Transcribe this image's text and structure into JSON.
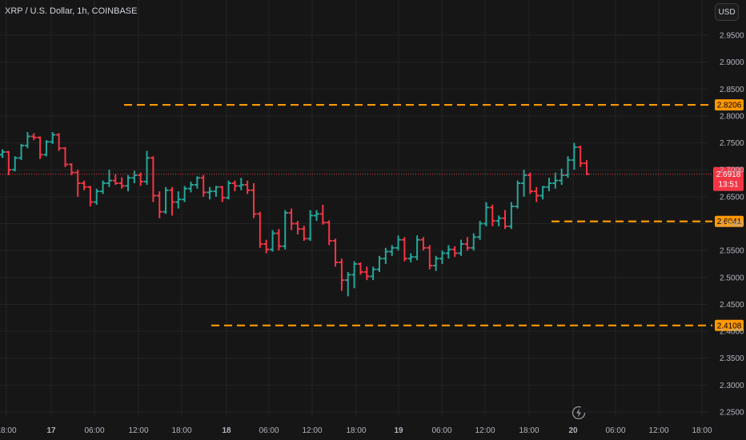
{
  "title": "XRP / U.S. Dollar, 1h, COINBASE",
  "currency_button": "USD",
  "countdown": "13:51",
  "colors": {
    "background": "#161616",
    "grid": "#242424",
    "up": "#26a69a",
    "down": "#f23645",
    "level": "#ff9800",
    "axis_text": "#b2b5be"
  },
  "icons": {
    "sync": "lightning-circle-icon"
  },
  "chart_data": {
    "type": "ohlc",
    "ylim": [
      2.23,
      2.99
    ],
    "y_ticks": [
      "2.2500",
      "2.3000",
      "2.3500",
      "2.4000",
      "2.4500",
      "2.5000",
      "2.5500",
      "2.6000",
      "2.6500",
      "2.7000",
      "2.7500",
      "2.8000",
      "2.8500",
      "2.9000",
      "2.9500"
    ],
    "x_ticks": [
      "18:00",
      "17",
      "06:00",
      "12:00",
      "18:00",
      "18",
      "06:00",
      "12:00",
      "18:00",
      "19",
      "06:00",
      "12:00",
      "18:00",
      "20",
      "06:00",
      "12:00",
      "18:00"
    ],
    "last_price": "2.6918",
    "levels": [
      "2.8206",
      "2.6041",
      "2.4108"
    ],
    "bars": [
      [
        2.728,
        2.738,
        2.722,
        2.733
      ],
      [
        2.733,
        2.735,
        2.69,
        2.7
      ],
      [
        2.7,
        2.725,
        2.697,
        2.722
      ],
      [
        2.722,
        2.748,
        2.718,
        2.745
      ],
      [
        2.745,
        2.77,
        2.74,
        2.762
      ],
      [
        2.762,
        2.768,
        2.755,
        2.76
      ],
      [
        2.76,
        2.762,
        2.72,
        2.728
      ],
      [
        2.728,
        2.755,
        2.725,
        2.752
      ],
      [
        2.752,
        2.77,
        2.748,
        2.765
      ],
      [
        2.765,
        2.768,
        2.735,
        2.74
      ],
      [
        2.74,
        2.742,
        2.705,
        2.71
      ],
      [
        2.71,
        2.712,
        2.69,
        2.695
      ],
      [
        2.695,
        2.7,
        2.65,
        2.675
      ],
      [
        2.675,
        2.68,
        2.662,
        2.668
      ],
      [
        2.668,
        2.67,
        2.632,
        2.64
      ],
      [
        2.64,
        2.665,
        2.635,
        2.66
      ],
      [
        2.66,
        2.68,
        2.655,
        2.675
      ],
      [
        2.675,
        2.7,
        2.668,
        2.68
      ],
      [
        2.68,
        2.692,
        2.672,
        2.675
      ],
      [
        2.675,
        2.686,
        2.665,
        2.67
      ],
      [
        2.67,
        2.69,
        2.66,
        2.685
      ],
      [
        2.685,
        2.698,
        2.675,
        2.69
      ],
      [
        2.69,
        2.695,
        2.67,
        2.678
      ],
      [
        2.678,
        2.735,
        2.672,
        2.722
      ],
      [
        2.722,
        2.725,
        2.64,
        2.652
      ],
      [
        2.652,
        2.66,
        2.61,
        2.622
      ],
      [
        2.622,
        2.668,
        2.618,
        2.662
      ],
      [
        2.662,
        2.668,
        2.615,
        2.64
      ],
      [
        2.64,
        2.66,
        2.628,
        2.645
      ],
      [
        2.645,
        2.67,
        2.64,
        2.665
      ],
      [
        2.665,
        2.678,
        2.658,
        2.672
      ],
      [
        2.672,
        2.688,
        2.665,
        2.685
      ],
      [
        2.685,
        2.69,
        2.65,
        2.658
      ],
      [
        2.658,
        2.668,
        2.645,
        2.66
      ],
      [
        2.66,
        2.67,
        2.65,
        2.668
      ],
      [
        2.668,
        2.67,
        2.64,
        2.648
      ],
      [
        2.648,
        2.68,
        2.645,
        2.675
      ],
      [
        2.675,
        2.68,
        2.66,
        2.67
      ],
      [
        2.67,
        2.685,
        2.662,
        2.672
      ],
      [
        2.672,
        2.68,
        2.655,
        2.662
      ],
      [
        2.662,
        2.675,
        2.61,
        2.618
      ],
      [
        2.618,
        2.622,
        2.555,
        2.562
      ],
      [
        2.562,
        2.57,
        2.545,
        2.552
      ],
      [
        2.552,
        2.588,
        2.548,
        2.582
      ],
      [
        2.582,
        2.59,
        2.55,
        2.558
      ],
      [
        2.558,
        2.625,
        2.552,
        2.62
      ],
      [
        2.62,
        2.628,
        2.588,
        2.6
      ],
      [
        2.6,
        2.605,
        2.58,
        2.59
      ],
      [
        2.59,
        2.596,
        2.568,
        2.572
      ],
      [
        2.572,
        2.625,
        2.568,
        2.615
      ],
      [
        2.615,
        2.625,
        2.605,
        2.618
      ],
      [
        2.618,
        2.635,
        2.598,
        2.602
      ],
      [
        2.602,
        2.606,
        2.56,
        2.568
      ],
      [
        2.568,
        2.572,
        2.52,
        2.528
      ],
      [
        2.528,
        2.535,
        2.475,
        2.495
      ],
      [
        2.495,
        2.51,
        2.465,
        2.505
      ],
      [
        2.505,
        2.53,
        2.48,
        2.525
      ],
      [
        2.525,
        2.528,
        2.505,
        2.51
      ],
      [
        2.51,
        2.52,
        2.495,
        2.502
      ],
      [
        2.502,
        2.52,
        2.495,
        2.515
      ],
      [
        2.515,
        2.54,
        2.51,
        2.535
      ],
      [
        2.535,
        2.555,
        2.525,
        2.548
      ],
      [
        2.548,
        2.56,
        2.54,
        2.555
      ],
      [
        2.555,
        2.578,
        2.55,
        2.57
      ],
      [
        2.57,
        2.575,
        2.53,
        2.535
      ],
      [
        2.535,
        2.545,
        2.528,
        2.538
      ],
      [
        2.538,
        2.578,
        2.532,
        2.57
      ],
      [
        2.57,
        2.575,
        2.55,
        2.555
      ],
      [
        2.555,
        2.56,
        2.515,
        2.522
      ],
      [
        2.522,
        2.54,
        2.512,
        2.535
      ],
      [
        2.535,
        2.55,
        2.525,
        2.545
      ],
      [
        2.545,
        2.56,
        2.535,
        2.552
      ],
      [
        2.552,
        2.558,
        2.538,
        2.545
      ],
      [
        2.545,
        2.57,
        2.54,
        2.562
      ],
      [
        2.562,
        2.575,
        2.55,
        2.555
      ],
      [
        2.555,
        2.582,
        2.55,
        2.575
      ],
      [
        2.575,
        2.605,
        2.57,
        2.6
      ],
      [
        2.6,
        2.64,
        2.595,
        2.63
      ],
      [
        2.63,
        2.635,
        2.595,
        2.605
      ],
      [
        2.605,
        2.615,
        2.595,
        2.61
      ],
      [
        2.61,
        2.625,
        2.59,
        2.595
      ],
      [
        2.595,
        2.64,
        2.59,
        2.632
      ],
      [
        2.632,
        2.68,
        2.628,
        2.675
      ],
      [
        2.675,
        2.7,
        2.65,
        2.69
      ],
      [
        2.69,
        2.695,
        2.655,
        2.66
      ],
      [
        2.66,
        2.668,
        2.64,
        2.652
      ],
      [
        2.652,
        2.67,
        2.645,
        2.668
      ],
      [
        2.668,
        2.685,
        2.66,
        2.675
      ],
      [
        2.675,
        2.695,
        2.665,
        2.68
      ],
      [
        2.68,
        2.702,
        2.672,
        2.69
      ],
      [
        2.69,
        2.725,
        2.685,
        2.718
      ],
      [
        2.718,
        2.75,
        2.7,
        2.742
      ],
      [
        2.742,
        2.745,
        2.705,
        2.712
      ],
      [
        2.712,
        2.718,
        2.69,
        2.692
      ]
    ]
  }
}
